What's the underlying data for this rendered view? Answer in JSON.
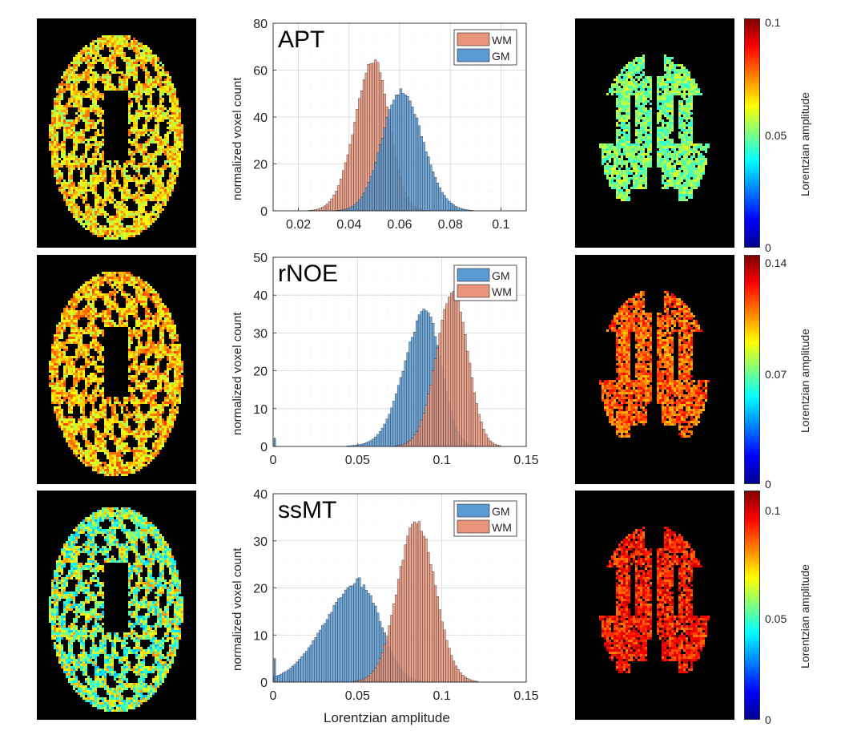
{
  "panels": [
    {
      "map_left_id": "apt-left",
      "map_right_id": "apt-right"
    },
    {
      "map_left_id": "rnoe-left",
      "map_right_id": "rnoe-right"
    },
    {
      "map_left_id": "ssmt-left",
      "map_right_id": "ssmt-right"
    }
  ],
  "colorbars": [
    {
      "max_label": "0.1",
      "mid_label": "0.05",
      "min_label": "0",
      "title": "Lorentzian amplitude"
    },
    {
      "max_label": "0.14",
      "mid_label": "0.07",
      "min_label": "0",
      "title": "Lorentzian amplitude"
    },
    {
      "max_label": "0.1",
      "mid_label": "0.05",
      "min_label": "0",
      "title": "Lorentzian amplitude"
    }
  ],
  "colors": {
    "wm": "#e8947a",
    "gm": "#5b9bd5",
    "bar_edge": "#1a1a1a",
    "grid": "#dcdcdc"
  },
  "xlabel": "Lorentzian amplitude",
  "chart_data": [
    {
      "type": "bar",
      "title": "APT",
      "ylabel": "normalized voxel count",
      "xlim": [
        0.01,
        0.11
      ],
      "ylim": [
        0,
        80
      ],
      "xticks": [
        "0.02",
        "0.04",
        "0.06",
        "0.08",
        "0.1"
      ],
      "yticks": [
        "0",
        "20",
        "40",
        "60",
        "80"
      ],
      "legend_position": "top-right",
      "grid": true,
      "series": [
        {
          "name": "WM",
          "color": "#e8947a",
          "peak_x": 0.05,
          "peak_y": 64,
          "sigma_left": 0.0075,
          "sigma_right": 0.006
        },
        {
          "name": "GM",
          "color": "#5b9bd5",
          "peak_x": 0.0605,
          "peak_y": 51,
          "sigma_left": 0.0075,
          "sigma_right": 0.0085
        }
      ]
    },
    {
      "type": "bar",
      "title": "rNOE",
      "ylabel": "normalized voxel count",
      "xlim": [
        0,
        0.15
      ],
      "ylim": [
        0,
        50
      ],
      "xticks": [
        "0",
        "0.05",
        "0.1",
        "0.15"
      ],
      "yticks": [
        "0",
        "10",
        "20",
        "30",
        "40",
        "50"
      ],
      "legend_position": "top-right",
      "grid": true,
      "series": [
        {
          "name": "GM",
          "color": "#5b9bd5",
          "peak_x": 0.091,
          "peak_y": 35,
          "sigma_left": 0.013,
          "sigma_right": 0.009
        },
        {
          "name": "WM",
          "color": "#e8947a",
          "peak_x": 0.107,
          "peak_y": 41,
          "sigma_left": 0.01,
          "sigma_right": 0.0085
        }
      ]
    },
    {
      "type": "bar",
      "title": "ssMT",
      "ylabel": "normalized voxel count",
      "xlim": [
        0,
        0.15
      ],
      "ylim": [
        0,
        40
      ],
      "xticks": [
        "0",
        "0.05",
        "0.1",
        "0.15"
      ],
      "yticks": [
        "0",
        "10",
        "20",
        "30",
        "40"
      ],
      "legend_position": "top-right",
      "grid": true,
      "series": [
        {
          "name": "GM",
          "color": "#5b9bd5",
          "peak_x": 0.052,
          "peak_y": 20.5,
          "sigma_left": 0.021,
          "sigma_right": 0.012
        },
        {
          "name": "WM",
          "color": "#e8947a",
          "peak_x": 0.085,
          "peak_y": 34,
          "sigma_left": 0.011,
          "sigma_right": 0.011
        }
      ]
    }
  ]
}
